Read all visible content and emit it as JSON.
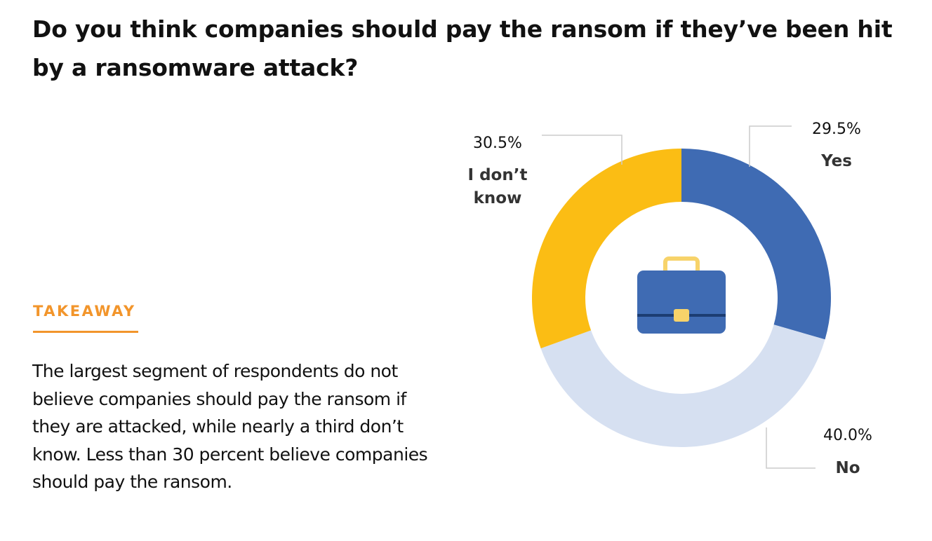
{
  "title": "Do you think companies should pay the ransom if they’ve been hit by a ransomware attack?",
  "takeaway": {
    "label": "TAKEAWAY",
    "text": "The largest segment of respondents do not believe companies should pay the ransom if they are attacked, while nearly a third don’t know. Less than 30 percent believe companies should pay the ransom."
  },
  "center_icon": "briefcase-icon",
  "chart_data": {
    "type": "pie",
    "donut": true,
    "slices": [
      {
        "label": "Yes",
        "value": 29.5,
        "value_label": "29.5%",
        "color": "#3f6bb3"
      },
      {
        "label": "No",
        "value": 40.0,
        "value_label": "40.0%",
        "color": "#d6e0f1"
      },
      {
        "label": "I don’t know",
        "label_lines": [
          "I don’t",
          "know"
        ],
        "value": 30.5,
        "value_label": "30.5%",
        "color": "#fbbd14"
      }
    ]
  }
}
